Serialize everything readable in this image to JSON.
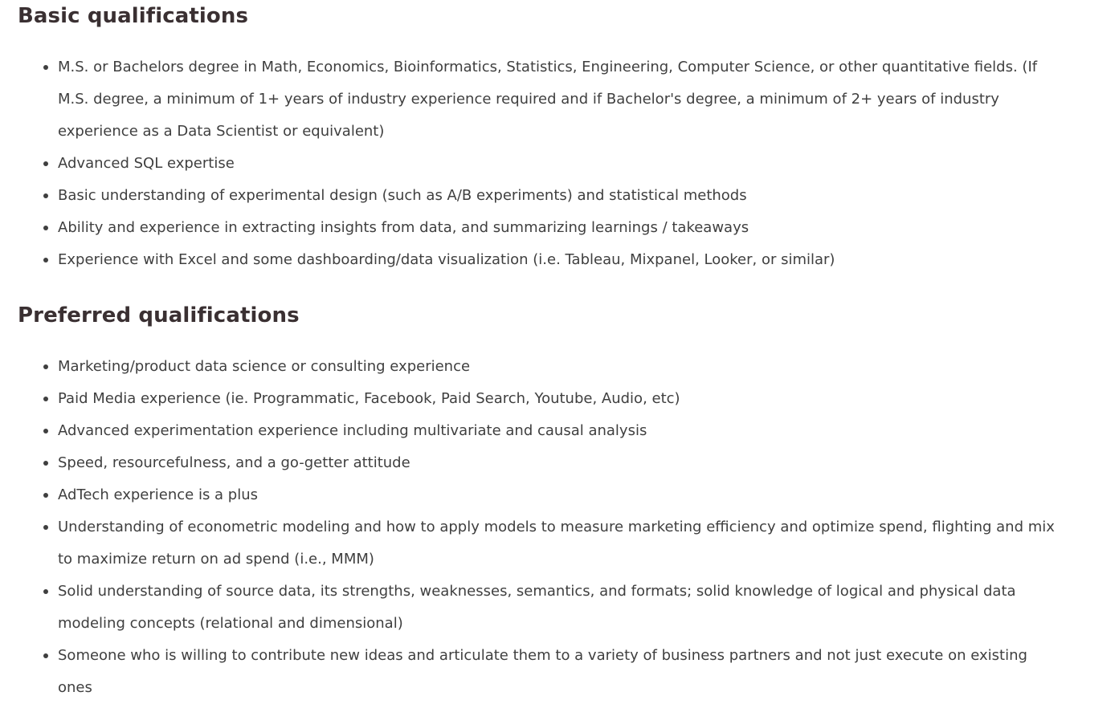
{
  "basic": {
    "title": "Basic qualifications",
    "items": [
      "M.S. or Bachelors degree in Math, Economics, Bioinformatics, Statistics, Engineering, Computer Science, or other quantitative fields. (If M.S. degree, a minimum of 1+ years of industry experience required and if Bachelor's degree, a minimum of 2+ years of industry experience as a Data Scientist or equivalent)",
      "Advanced SQL expertise",
      "Basic understanding of experimental design (such as A/B experiments) and statistical methods",
      "Ability and experience in extracting insights from data, and summarizing learnings / takeaways",
      "Experience with Excel and some dashboarding/data visualization (i.e. Tableau, Mixpanel, Looker, or similar)"
    ]
  },
  "preferred": {
    "title": "Preferred qualifications",
    "items": [
      "Marketing/product data science or consulting experience",
      "Paid Media experience (ie. Programmatic, Facebook, Paid Search, Youtube, Audio, etc)",
      "Advanced experimentation experience including multivariate and causal analysis",
      "Speed, resourcefulness, and a go-getter attitude",
      "AdTech experience is a plus",
      "Understanding of econometric modeling and how to apply models to measure marketing efficiency and optimize spend, flighting and mix to maximize return on ad spend (i.e., MMM)",
      "Solid understanding of source data, its strengths, weaknesses, semantics, and formats; solid knowledge of logical and physical data modeling concepts (relational and dimensional)",
      "Someone who is willing to contribute new ideas and articulate them to a variety of business partners and not just execute on existing ones"
    ]
  }
}
